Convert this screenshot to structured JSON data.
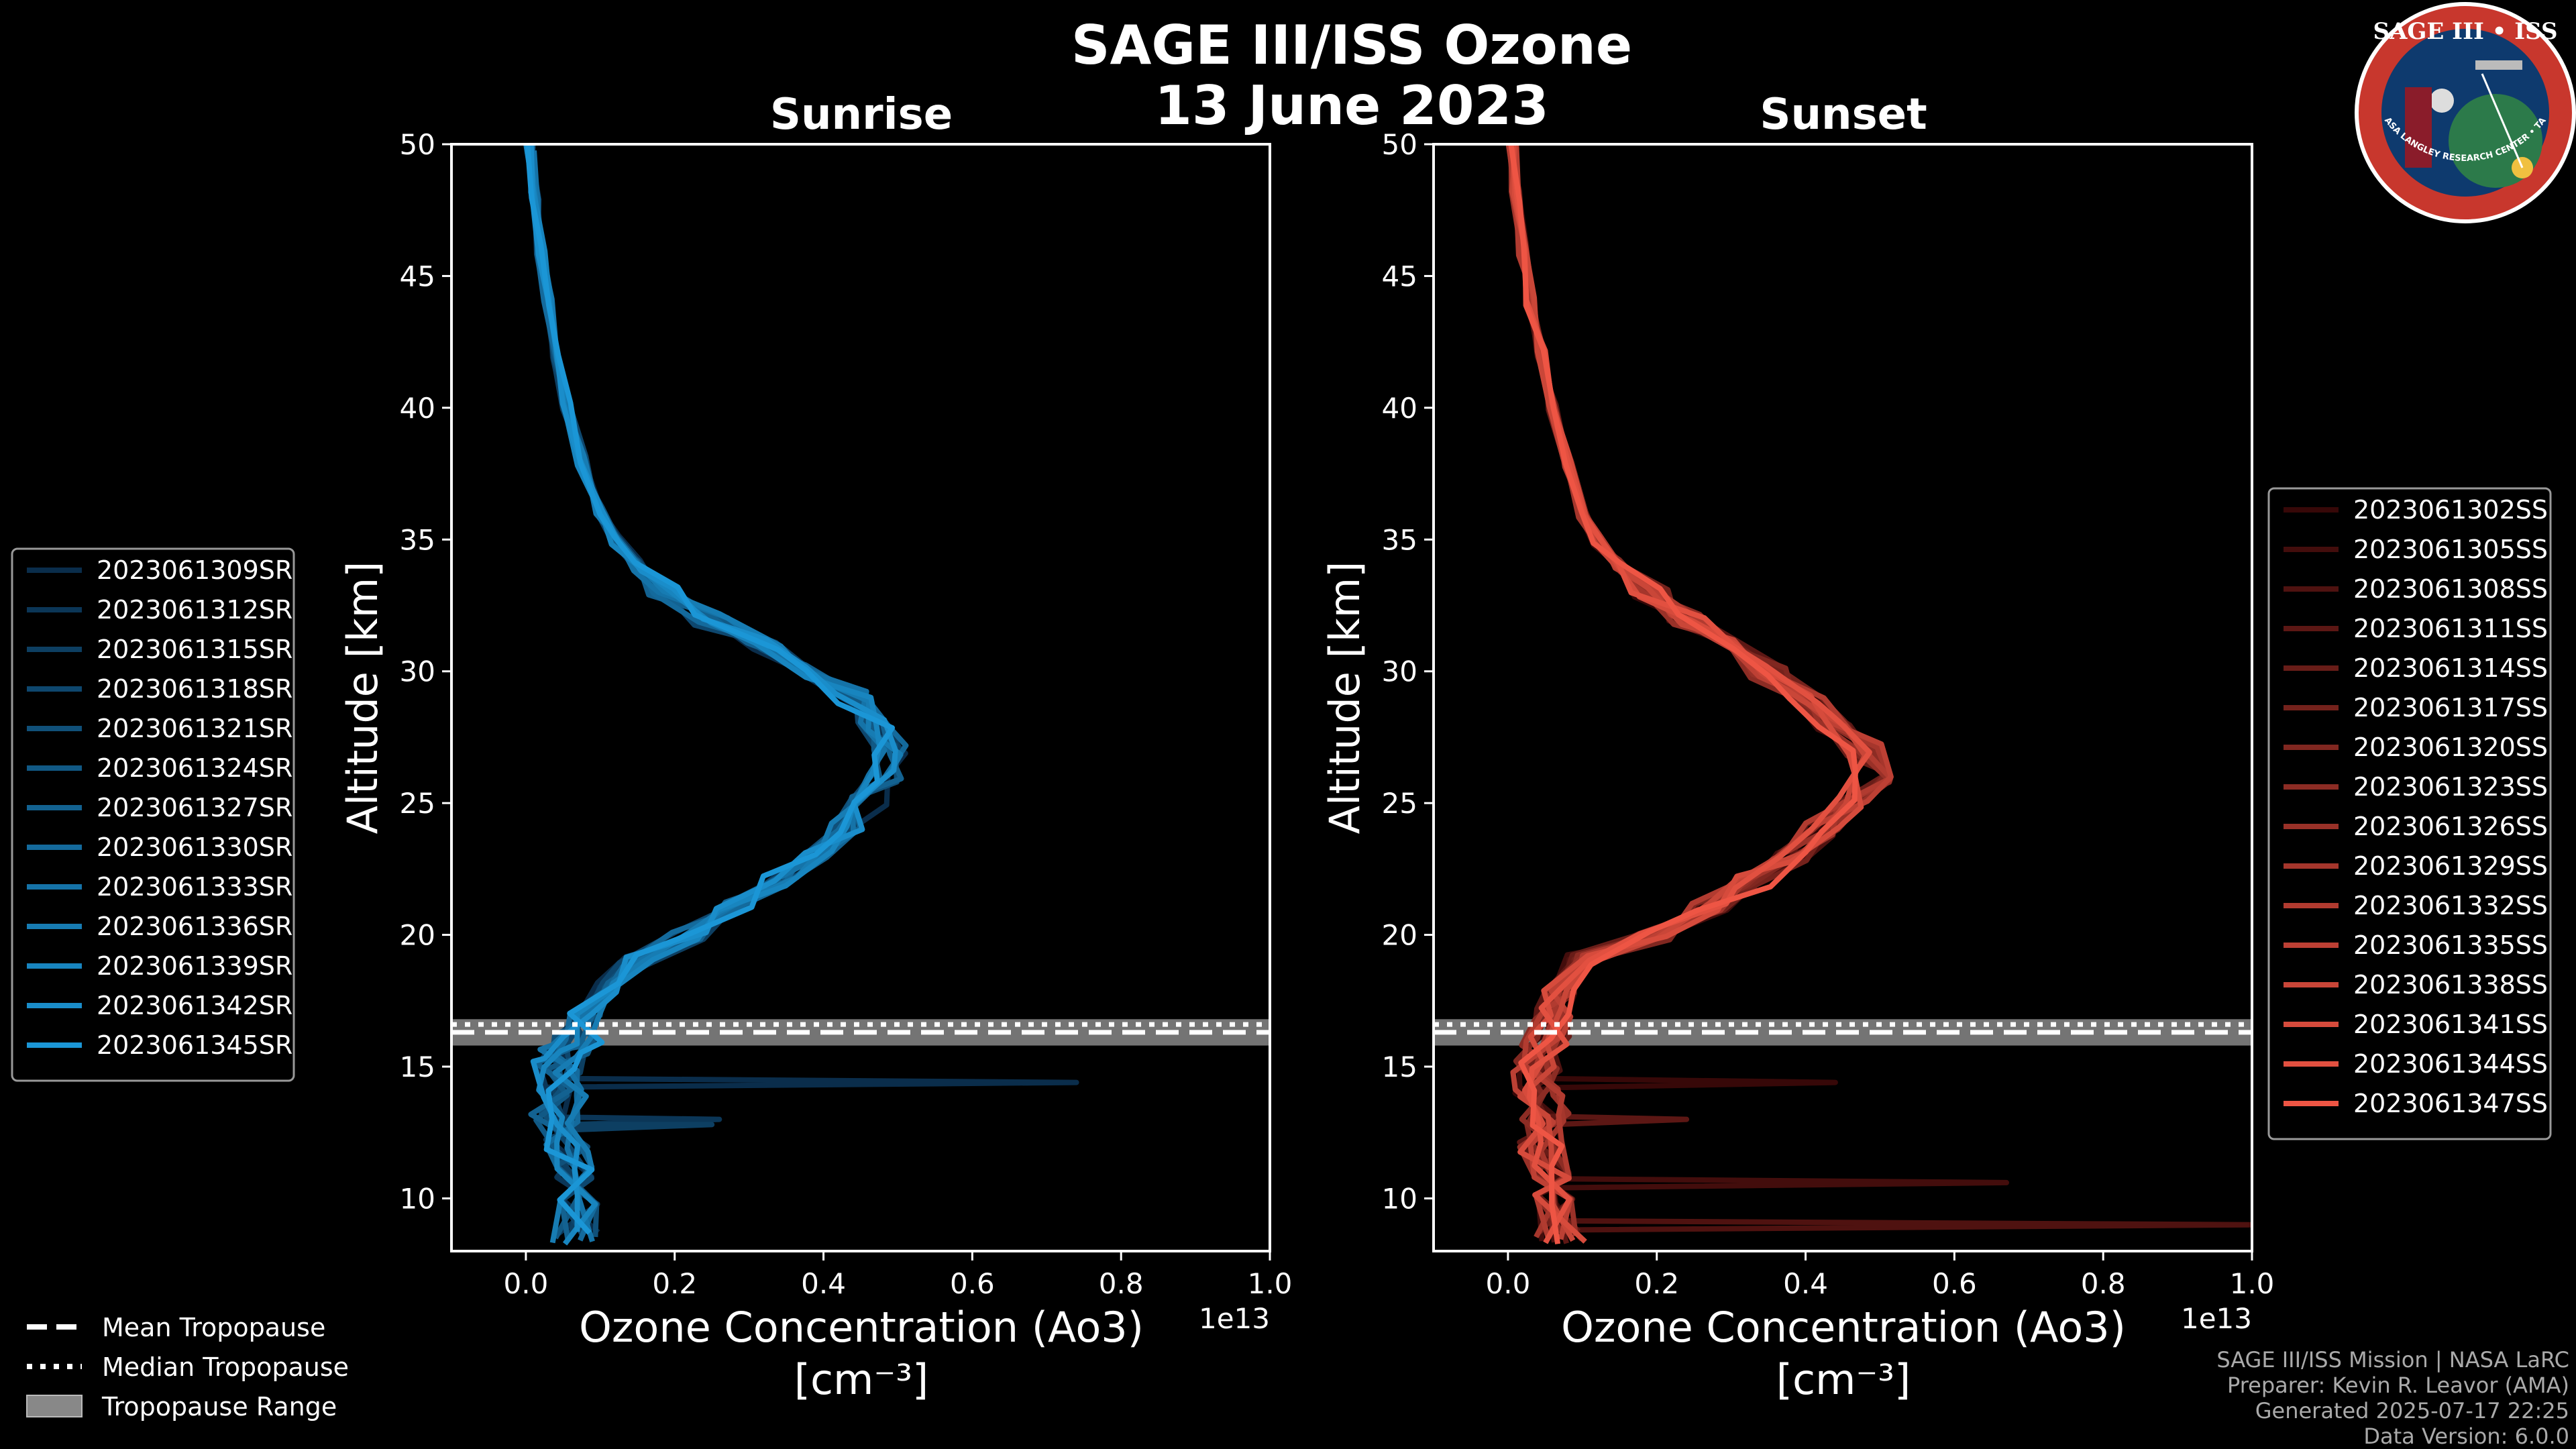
{
  "figure": {
    "title_line1": "SAGE III/ISS Ozone",
    "title_line2": "13 June 2023"
  },
  "tropopause_legend": {
    "mean": "Mean Tropopause",
    "median": "Median Tropopause",
    "range": "Tropopause Range"
  },
  "credits": {
    "line1": "SAGE III/ISS Mission | NASA LaRC",
    "line2": "Preparer: Kevin R. Leavor (AMA)",
    "line3": "Generated 2025-07-17 22:25",
    "line4": "Data Version: 6.0.0"
  },
  "logo": {
    "text": "SAGE III • ISS",
    "ring_text": "BALL • NASA LANGLEY RESEARCH CENTER • TAS-I • ESA"
  },
  "colors": {
    "background": "#000000",
    "sunrise": "#1b96d6",
    "sunset": "#ee5544",
    "tropopause_band": "#888888"
  },
  "chart_data": [
    {
      "type": "line",
      "title": "Sunrise",
      "xlabel_line1": "Ozone Concentration (Ao3)",
      "xlabel_line2": "[cm⁻³]",
      "ylabel": "Altitude [km]",
      "x_multiplier": "1e13",
      "xlim": [
        -0.1,
        1.0
      ],
      "ylim": [
        8,
        50
      ],
      "xticks": [
        0.0,
        0.2,
        0.4,
        0.6,
        0.8,
        1.0
      ],
      "yticks": [
        10,
        15,
        20,
        25,
        30,
        35,
        40,
        45,
        50
      ],
      "tropopause": {
        "mean": 16.3,
        "median": 16.6,
        "range": [
          15.8,
          16.8
        ]
      },
      "series_names": [
        "2023061309SR",
        "2023061312SR",
        "2023061315SR",
        "2023061318SR",
        "2023061321SR",
        "2023061324SR",
        "2023061327SR",
        "2023061330SR",
        "2023061333SR",
        "2023061336SR",
        "2023061339SR",
        "2023061342SR",
        "2023061345SR"
      ],
      "profile": {
        "altitude": [
          8.5,
          10,
          11,
          12,
          13,
          14,
          15,
          15.5,
          16,
          17,
          18,
          19,
          20,
          21,
          22,
          23,
          24,
          25,
          26,
          27,
          28,
          29,
          30,
          31,
          32,
          33,
          34,
          35,
          36,
          38,
          40,
          42,
          44,
          46,
          48,
          50
        ],
        "concentration": [
          0.07,
          0.08,
          0.06,
          0.05,
          0.04,
          0.05,
          0.04,
          0.05,
          0.07,
          0.08,
          0.12,
          0.15,
          0.22,
          0.28,
          0.34,
          0.39,
          0.43,
          0.46,
          0.48,
          0.49,
          0.47,
          0.44,
          0.38,
          0.32,
          0.25,
          0.19,
          0.15,
          0.12,
          0.1,
          0.075,
          0.055,
          0.04,
          0.03,
          0.02,
          0.012,
          0.005
        ]
      },
      "spikes": [
        {
          "altitude": 14.4,
          "concentration": 0.74
        },
        {
          "altitude": 13.0,
          "concentration": 0.26
        },
        {
          "altitude": 12.8,
          "concentration": 0.25
        }
      ]
    },
    {
      "type": "line",
      "title": "Sunset",
      "xlabel_line1": "Ozone Concentration (Ao3)",
      "xlabel_line2": "[cm⁻³]",
      "ylabel": "Altitude [km]",
      "x_multiplier": "1e13",
      "xlim": [
        -0.1,
        1.0
      ],
      "ylim": [
        8,
        50
      ],
      "xticks": [
        0.0,
        0.2,
        0.4,
        0.6,
        0.8,
        1.0
      ],
      "yticks": [
        10,
        15,
        20,
        25,
        30,
        35,
        40,
        45,
        50
      ],
      "tropopause": {
        "mean": 16.3,
        "median": 16.6,
        "range": [
          15.8,
          16.8
        ]
      },
      "series_names": [
        "2023061302SS",
        "2023061305SS",
        "2023061308SS",
        "2023061311SS",
        "2023061314SS",
        "2023061317SS",
        "2023061320SS",
        "2023061323SS",
        "2023061326SS",
        "2023061329SS",
        "2023061332SS",
        "2023061335SS",
        "2023061338SS",
        "2023061341SS",
        "2023061344SS",
        "2023061347SS"
      ],
      "profile": {
        "altitude": [
          8.5,
          10,
          11,
          12,
          13,
          14,
          15,
          16,
          17,
          18,
          19,
          20,
          21,
          22,
          23,
          24,
          25,
          26,
          27,
          28,
          29,
          30,
          31,
          32,
          33,
          34,
          35,
          36,
          38,
          40,
          42,
          44,
          46,
          48,
          50
        ],
        "concentration": [
          0.07,
          0.07,
          0.06,
          0.05,
          0.05,
          0.04,
          0.04,
          0.05,
          0.06,
          0.07,
          0.1,
          0.2,
          0.27,
          0.33,
          0.38,
          0.42,
          0.46,
          0.49,
          0.48,
          0.44,
          0.4,
          0.35,
          0.3,
          0.24,
          0.19,
          0.15,
          0.12,
          0.1,
          0.08,
          0.06,
          0.045,
          0.03,
          0.02,
          0.01,
          0.005
        ]
      },
      "spikes": [
        {
          "altitude": 14.4,
          "concentration": 0.44
        },
        {
          "altitude": 10.6,
          "concentration": 0.67
        },
        {
          "altitude": 9.0,
          "concentration": 1.0
        },
        {
          "altitude": 13.0,
          "concentration": 0.24
        }
      ]
    }
  ]
}
